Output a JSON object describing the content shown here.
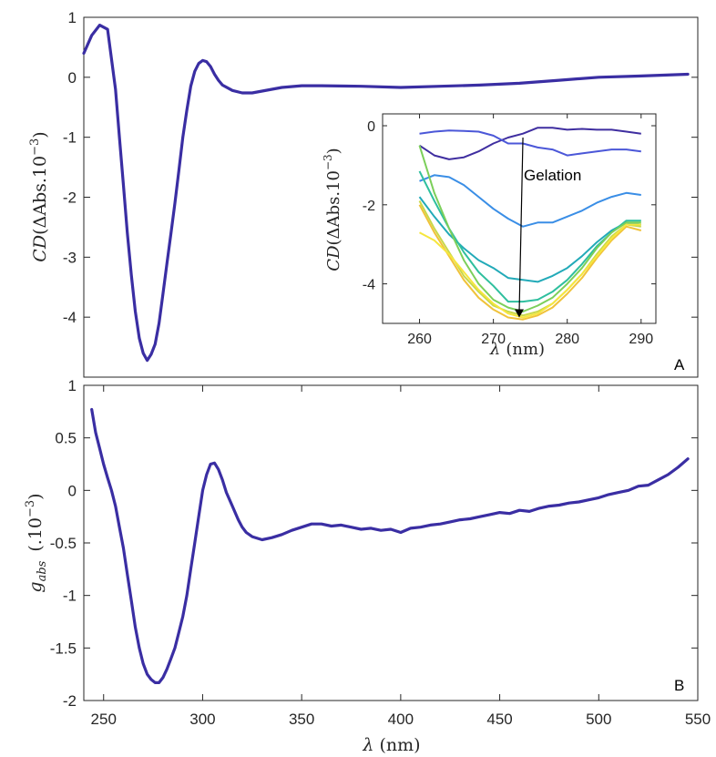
{
  "colors": {
    "main_line": "#3a2ea3",
    "axis": "#262626",
    "series_palette": [
      "#3f2ea0",
      "#4b57d8",
      "#3a8ee6",
      "#22aab8",
      "#2fbf9e",
      "#7ccf5a",
      "#c8d84a",
      "#f0c23a",
      "#f6e63e"
    ]
  },
  "chart_data": [
    {
      "id": "A",
      "type": "line",
      "panel_label": "A",
      "xlim": [
        240,
        550
      ],
      "ylim": [
        -5,
        1
      ],
      "yticks": [
        1,
        0,
        -1,
        -2,
        -3,
        -4
      ],
      "ytick_labels": [
        "1",
        "0",
        "-1",
        "-2",
        "-3",
        "-4"
      ],
      "ylabel": {
        "base": "CD",
        "paren_open": "(",
        "body": "ΔAbs.10",
        "sup": "−3",
        "paren_close": ")"
      },
      "series": [
        {
          "x": [
            240,
            244,
            248,
            252,
            256,
            258,
            260,
            262,
            264,
            266,
            268,
            270,
            272,
            274,
            276,
            278,
            280,
            282,
            284,
            286,
            288,
            290,
            292,
            294,
            296,
            298,
            300,
            302,
            304,
            306,
            308,
            310,
            315,
            320,
            325,
            330,
            340,
            350,
            360,
            380,
            400,
            420,
            440,
            460,
            480,
            500,
            520,
            545
          ],
          "y": [
            0.4,
            0.7,
            0.87,
            0.8,
            -0.2,
            -1.0,
            -1.8,
            -2.6,
            -3.3,
            -3.9,
            -4.35,
            -4.6,
            -4.72,
            -4.62,
            -4.45,
            -4.1,
            -3.6,
            -3.1,
            -2.6,
            -2.1,
            -1.55,
            -1.0,
            -0.55,
            -0.15,
            0.1,
            0.23,
            0.28,
            0.26,
            0.18,
            0.05,
            -0.05,
            -0.13,
            -0.22,
            -0.26,
            -0.26,
            -0.23,
            -0.17,
            -0.14,
            -0.14,
            -0.15,
            -0.17,
            -0.15,
            -0.13,
            -0.1,
            -0.05,
            0.0,
            0.02,
            0.05
          ]
        }
      ]
    },
    {
      "id": "inset",
      "type": "line",
      "xlim": [
        255,
        292
      ],
      "ylim": [
        -5,
        0.3
      ],
      "xticks": [
        260,
        270,
        280,
        290
      ],
      "xtick_labels": [
        "260",
        "270",
        "280",
        "290"
      ],
      "yticks": [
        0,
        -2,
        -4
      ],
      "ytick_labels": [
        "0",
        "-2",
        "-4"
      ],
      "ylabel": {
        "base": "CD",
        "paren_open": "(",
        "body": "ΔAbs.10",
        "sup": "−3",
        "paren_close": ")"
      },
      "xlabel": {
        "symbol": "λ",
        "unit": "(nm)"
      },
      "annotation": {
        "text": "Gelation",
        "arrow_from": [
          274,
          -0.3
        ],
        "arrow_to": [
          273.5,
          -4.85
        ]
      },
      "x": [
        260,
        262,
        264,
        266,
        268,
        270,
        272,
        274,
        276,
        278,
        280,
        282,
        284,
        286,
        288,
        290
      ],
      "series": [
        {
          "values": [
            -0.5,
            -0.75,
            -0.85,
            -0.8,
            -0.65,
            -0.45,
            -0.3,
            -0.2,
            -0.05,
            -0.05,
            -0.1,
            -0.08,
            -0.1,
            -0.1,
            -0.15,
            -0.2
          ]
        },
        {
          "values": [
            -0.2,
            -0.15,
            -0.12,
            -0.13,
            -0.15,
            -0.25,
            -0.45,
            -0.45,
            -0.55,
            -0.6,
            -0.75,
            -0.7,
            -0.65,
            -0.6,
            -0.6,
            -0.65
          ]
        },
        {
          "values": [
            -1.4,
            -1.25,
            -1.3,
            -1.5,
            -1.8,
            -2.1,
            -2.35,
            -2.55,
            -2.45,
            -2.45,
            -2.3,
            -2.15,
            -1.95,
            -1.8,
            -1.7,
            -1.75
          ]
        },
        {
          "values": [
            -1.8,
            -2.3,
            -2.75,
            -3.1,
            -3.4,
            -3.6,
            -3.85,
            -3.9,
            -3.95,
            -3.8,
            -3.6,
            -3.3,
            -2.95,
            -2.65,
            -2.45,
            -2.5
          ]
        },
        {
          "values": [
            -1.15,
            -1.9,
            -2.6,
            -3.2,
            -3.7,
            -4.05,
            -4.45,
            -4.45,
            -4.4,
            -4.2,
            -3.9,
            -3.5,
            -3.05,
            -2.7,
            -2.4,
            -2.4
          ]
        },
        {
          "values": [
            -0.5,
            -1.7,
            -2.6,
            -3.4,
            -4.0,
            -4.4,
            -4.6,
            -4.7,
            -4.55,
            -4.35,
            -4.0,
            -3.6,
            -3.1,
            -2.7,
            -2.45,
            -2.45
          ]
        },
        {
          "values": [
            -1.9,
            -2.6,
            -3.2,
            -3.8,
            -4.2,
            -4.55,
            -4.7,
            -4.8,
            -4.7,
            -4.5,
            -4.15,
            -3.75,
            -3.25,
            -2.8,
            -2.5,
            -2.55
          ]
        },
        {
          "values": [
            -2.0,
            -2.7,
            -3.3,
            -3.9,
            -4.35,
            -4.65,
            -4.85,
            -4.9,
            -4.8,
            -4.6,
            -4.25,
            -3.85,
            -3.35,
            -2.9,
            -2.55,
            -2.65
          ]
        },
        {
          "values": [
            -2.7,
            -2.9,
            -3.25,
            -3.7,
            -4.15,
            -4.5,
            -4.75,
            -4.85,
            -4.75,
            -4.5,
            -4.15,
            -3.75,
            -3.3,
            -2.85,
            -2.5,
            -2.5
          ]
        }
      ]
    },
    {
      "id": "B",
      "type": "line",
      "panel_label": "B",
      "xlim": [
        240,
        550
      ],
      "ylim": [
        -2,
        1
      ],
      "xticks": [
        250,
        300,
        350,
        400,
        450,
        500,
        550
      ],
      "xtick_labels": [
        "250",
        "300",
        "350",
        "400",
        "450",
        "500",
        "550"
      ],
      "yticks": [
        1,
        0.5,
        0,
        -0.5,
        -1,
        -1.5,
        -2
      ],
      "ytick_labels": [
        "1",
        "0.5",
        "0",
        "-0.5",
        "-1",
        "-1.5",
        "-2"
      ],
      "ylabel": {
        "base": "g",
        "sub": "abs",
        "body": "(.10",
        "sup": "−3",
        "paren_close": ")"
      },
      "xlabel": {
        "symbol": "λ",
        "unit": "(nm)"
      },
      "series": [
        {
          "x": [
            244,
            246,
            248,
            250,
            252,
            254,
            256,
            258,
            260,
            262,
            264,
            266,
            268,
            270,
            272,
            274,
            276,
            278,
            280,
            282,
            284,
            286,
            288,
            290,
            292,
            294,
            296,
            298,
            300,
            302,
            304,
            306,
            308,
            310,
            312,
            315,
            318,
            320,
            322,
            325,
            330,
            335,
            340,
            345,
            350,
            355,
            360,
            365,
            370,
            375,
            380,
            385,
            390,
            395,
            400,
            405,
            410,
            415,
            420,
            425,
            430,
            435,
            440,
            445,
            450,
            455,
            460,
            465,
            470,
            475,
            480,
            485,
            490,
            495,
            500,
            505,
            510,
            515,
            520,
            525,
            530,
            535,
            540,
            545
          ],
          "y": [
            0.77,
            0.55,
            0.4,
            0.25,
            0.12,
            0.0,
            -0.15,
            -0.35,
            -0.55,
            -0.8,
            -1.05,
            -1.3,
            -1.5,
            -1.65,
            -1.75,
            -1.8,
            -1.83,
            -1.83,
            -1.78,
            -1.7,
            -1.6,
            -1.5,
            -1.35,
            -1.2,
            -1.0,
            -0.75,
            -0.5,
            -0.25,
            0.0,
            0.15,
            0.25,
            0.26,
            0.2,
            0.1,
            -0.02,
            -0.15,
            -0.28,
            -0.35,
            -0.4,
            -0.44,
            -0.47,
            -0.45,
            -0.42,
            -0.38,
            -0.35,
            -0.32,
            -0.32,
            -0.34,
            -0.33,
            -0.35,
            -0.37,
            -0.36,
            -0.38,
            -0.37,
            -0.4,
            -0.36,
            -0.35,
            -0.33,
            -0.32,
            -0.3,
            -0.28,
            -0.27,
            -0.25,
            -0.23,
            -0.21,
            -0.22,
            -0.19,
            -0.2,
            -0.17,
            -0.15,
            -0.14,
            -0.12,
            -0.11,
            -0.09,
            -0.07,
            -0.04,
            -0.02,
            0.0,
            0.04,
            0.05,
            0.1,
            0.15,
            0.22,
            0.3
          ]
        }
      ]
    }
  ]
}
